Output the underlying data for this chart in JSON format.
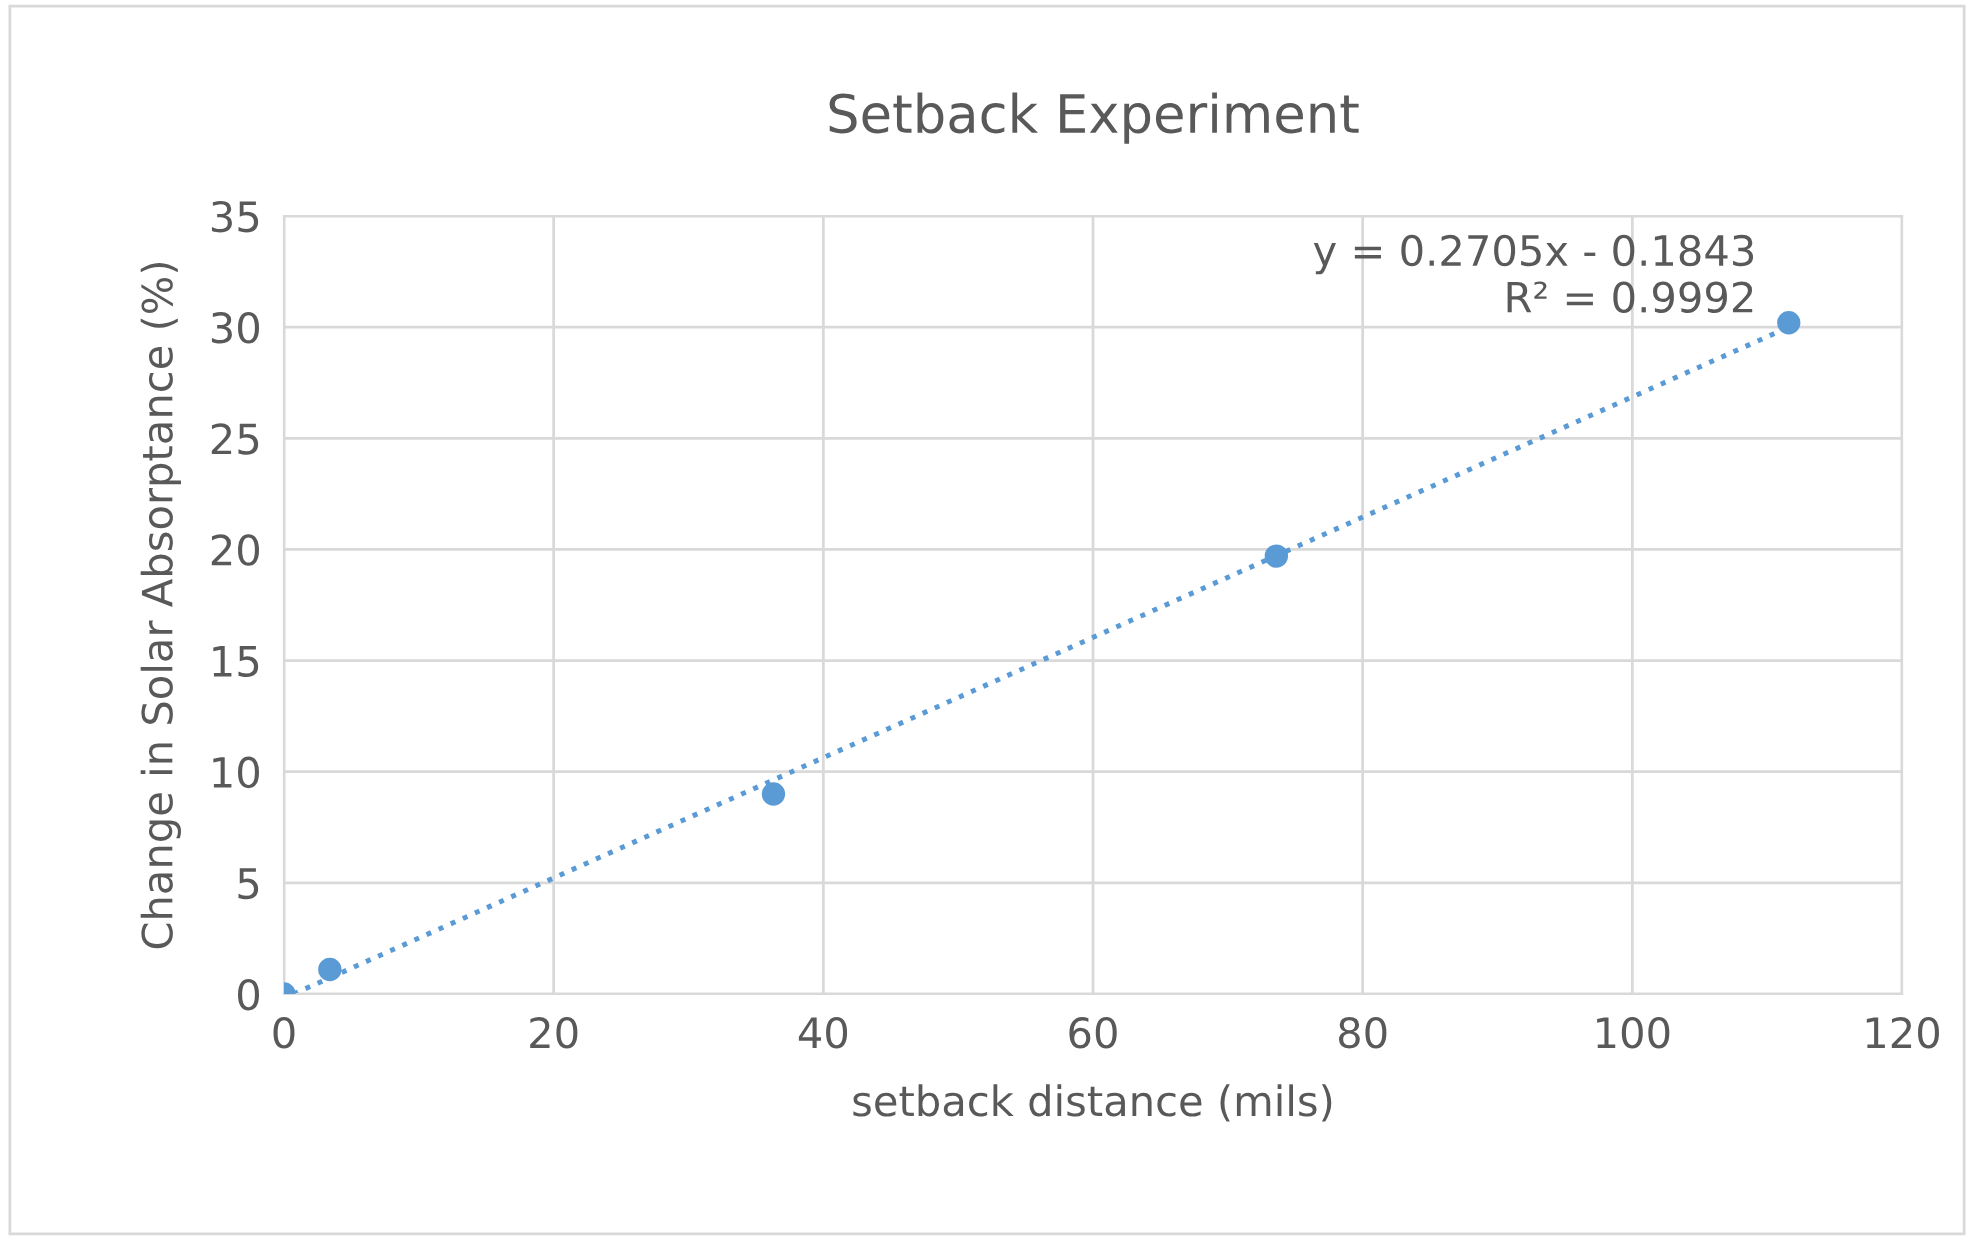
{
  "chart_data": {
    "type": "scatter",
    "title": "Setback Experiment",
    "xlabel": "setback distance (mils)",
    "ylabel": "Change in Solar Absorptance (%)",
    "series": [
      {
        "color": "#5b9bd5",
        "x": [
          0,
          3.4,
          36.3,
          73.6,
          111.6
        ],
        "values": [
          0.0,
          1.1,
          9.0,
          19.7,
          30.2
        ],
        "marker": "circle"
      },
      {
        "type": "line",
        "color": "#5b9bd5",
        "x": [
          0.7,
          111.6
        ],
        "values": [
          0.0,
          30.0
        ],
        "line_style": "dotted",
        "marker": "none"
      }
    ],
    "annotations": [
      "y = 0.2705x - 0.1843\nR² = 0.9992"
    ],
    "xlim": [
      0,
      120
    ],
    "xticks": [
      0,
      20,
      40,
      60,
      80,
      100,
      120
    ],
    "ylim": [
      0,
      35
    ],
    "yticks": [
      0,
      5,
      10,
      15,
      20,
      25,
      30,
      35
    ],
    "grid": true,
    "legend": false
  }
}
